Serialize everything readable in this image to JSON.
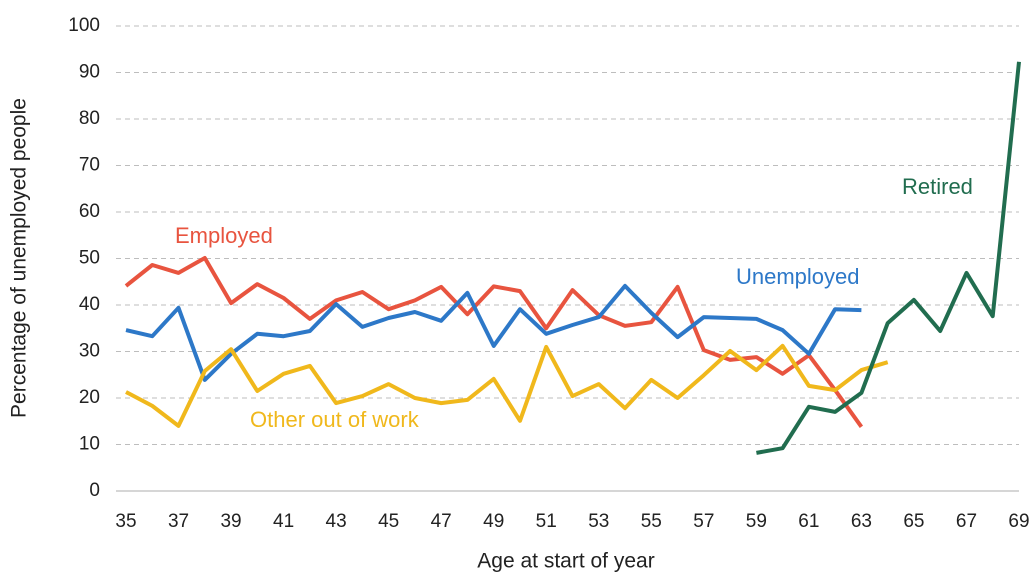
{
  "chart_data": {
    "type": "line",
    "x_label": "Age at start of year",
    "y_label": "Percentage of unemployed people",
    "x": [
      35,
      36,
      37,
      38,
      39,
      40,
      41,
      42,
      43,
      44,
      45,
      46,
      47,
      48,
      49,
      50,
      51,
      52,
      53,
      54,
      55,
      56,
      57,
      58,
      59,
      60,
      61,
      62,
      63,
      64,
      65,
      66,
      67,
      68,
      69
    ],
    "xlim": [
      35,
      69
    ],
    "xticks": [
      35,
      37,
      39,
      41,
      43,
      45,
      47,
      49,
      51,
      53,
      55,
      57,
      59,
      61,
      63,
      65,
      67,
      69
    ],
    "ylim": [
      0,
      100
    ],
    "yticks": [
      0,
      10,
      20,
      30,
      40,
      50,
      60,
      70,
      80,
      90,
      100
    ],
    "grid": true,
    "series": [
      {
        "name": "Employed",
        "color": "#e8543f",
        "values": [
          44.1,
          48.6,
          46.9,
          50.1,
          40.4,
          44.5,
          41.5,
          37,
          41,
          42.8,
          39.1,
          41,
          43.9,
          38,
          44,
          43,
          35,
          43.2,
          37.8,
          35.5,
          36.3,
          43.9,
          30.3,
          28.2,
          28.8,
          25.2,
          29.2,
          21.7,
          13.8,
          null,
          null,
          null,
          null,
          null,
          null
        ]
      },
      {
        "name": "Unemployed",
        "color": "#2d78c8",
        "values": [
          34.6,
          33.3,
          39.4,
          23.9,
          29.5,
          33.8,
          33.3,
          34.4,
          40.2,
          35.3,
          37.2,
          38.5,
          36.6,
          42.6,
          31.2,
          39.1,
          33.8,
          35.7,
          37.4,
          44.1,
          38.3,
          33.1,
          37.4,
          37.2,
          37,
          34.6,
          29.5,
          39.1,
          38.9,
          null,
          null,
          null,
          null,
          null,
          null
        ]
      },
      {
        "name": "Other out of work",
        "color": "#f0b81c",
        "values": [
          21.3,
          18.3,
          14,
          25.8,
          30.5,
          21.5,
          25.2,
          26.9,
          18.9,
          20.4,
          23,
          20,
          18.9,
          19.6,
          24.1,
          15.1,
          31,
          20.4,
          23,
          17.8,
          23.9,
          20,
          24.9,
          30.1,
          26,
          31.2,
          22.6,
          21.7,
          26,
          27.7,
          null,
          null,
          null,
          null,
          null
        ]
      },
      {
        "name": "Retired",
        "color": "#216d4f",
        "values": [
          null,
          null,
          null,
          null,
          null,
          null,
          null,
          null,
          null,
          null,
          null,
          null,
          null,
          null,
          null,
          null,
          null,
          null,
          null,
          null,
          null,
          null,
          null,
          null,
          8.2,
          9.2,
          18.1,
          17,
          21.1,
          36.1,
          41.1,
          34.4,
          46.9,
          37.6,
          92.3
        ]
      }
    ]
  }
}
